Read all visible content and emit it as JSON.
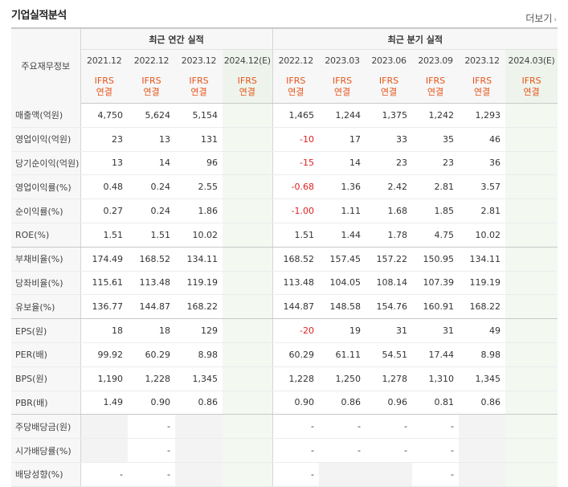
{
  "title": "기업실적분석",
  "more_label": "더보기",
  "header": {
    "main_label": "주요재무정보",
    "annual_group": "최근 연간 실적",
    "quarter_group": "최근 분기 실적",
    "periods": [
      "2021.12",
      "2022.12",
      "2023.12",
      "2024.12(E)",
      "2022.12",
      "2023.03",
      "2023.06",
      "2023.09",
      "2023.12",
      "2024.03(E)"
    ],
    "standard_top": "IFRS",
    "standard_bottom": "연결"
  },
  "rows": [
    {
      "label": "매출액(억원)",
      "values": [
        "4,750",
        "5,624",
        "5,154",
        "",
        "1,465",
        "1,244",
        "1,375",
        "1,242",
        "1,293",
        ""
      ]
    },
    {
      "label": "영업이익(억원)",
      "values": [
        "23",
        "13",
        "131",
        "",
        "-10",
        "17",
        "33",
        "35",
        "46",
        ""
      ]
    },
    {
      "label": "당기순이익(억원)",
      "values": [
        "13",
        "14",
        "96",
        "",
        "-15",
        "14",
        "23",
        "23",
        "36",
        ""
      ]
    },
    {
      "label": "영업이익률(%)",
      "values": [
        "0.48",
        "0.24",
        "2.55",
        "",
        "-0.68",
        "1.36",
        "2.42",
        "2.81",
        "3.57",
        ""
      ]
    },
    {
      "label": "순이익률(%)",
      "values": [
        "0.27",
        "0.24",
        "1.86",
        "",
        "-1.00",
        "1.11",
        "1.68",
        "1.85",
        "2.81",
        ""
      ]
    },
    {
      "label": "ROE(%)",
      "values": [
        "1.51",
        "1.51",
        "10.02",
        "",
        "1.51",
        "1.44",
        "1.78",
        "4.75",
        "10.02",
        ""
      ]
    },
    {
      "label": "부채비율(%)",
      "values": [
        "174.49",
        "168.52",
        "134.11",
        "",
        "168.52",
        "157.45",
        "157.22",
        "150.95",
        "134.11",
        ""
      ]
    },
    {
      "label": "당좌비율(%)",
      "values": [
        "115.61",
        "113.48",
        "119.19",
        "",
        "113.48",
        "104.05",
        "108.14",
        "107.39",
        "119.19",
        ""
      ]
    },
    {
      "label": "유보율(%)",
      "values": [
        "136.77",
        "144.87",
        "168.22",
        "",
        "144.87",
        "148.58",
        "154.76",
        "160.91",
        "168.22",
        ""
      ]
    },
    {
      "label": "EPS(원)",
      "values": [
        "18",
        "18",
        "129",
        "",
        "-20",
        "19",
        "31",
        "31",
        "49",
        ""
      ]
    },
    {
      "label": "PER(배)",
      "values": [
        "99.92",
        "60.29",
        "8.98",
        "",
        "60.29",
        "61.11",
        "54.51",
        "17.44",
        "8.98",
        ""
      ]
    },
    {
      "label": "BPS(원)",
      "values": [
        "1,190",
        "1,228",
        "1,345",
        "",
        "1,228",
        "1,250",
        "1,278",
        "1,310",
        "1,345",
        ""
      ]
    },
    {
      "label": "PBR(배)",
      "values": [
        "1.49",
        "0.90",
        "0.86",
        "",
        "0.90",
        "0.86",
        "0.96",
        "0.81",
        "0.86",
        ""
      ]
    },
    {
      "label": "주당배당금(원)",
      "values": [
        "",
        "-",
        "",
        "",
        "-",
        "-",
        "-",
        "-",
        "",
        ""
      ]
    },
    {
      "label": "시가배당률(%)",
      "values": [
        "",
        "-",
        "",
        "",
        "-",
        "-",
        "-",
        "-",
        "",
        ""
      ]
    },
    {
      "label": "배당성향(%)",
      "values": [
        "-",
        "-",
        "",
        "",
        "-",
        "",
        "",
        "-",
        "",
        ""
      ]
    }
  ]
}
